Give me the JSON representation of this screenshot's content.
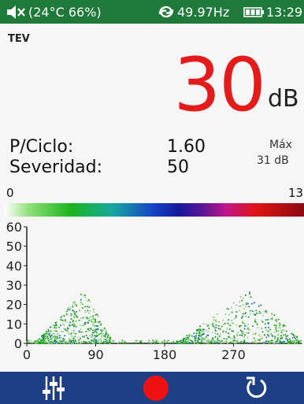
{
  "status_bar": {
    "env_text": "(24°C 66%)",
    "frequency": "49.97Hz",
    "time": "13:29",
    "icons": [
      "speaker-muted-icon",
      "sync-icon",
      "battery-icon"
    ]
  },
  "mode": "TEV",
  "reading": {
    "value": "30",
    "unit": "dB"
  },
  "stats": {
    "pulses_label": "P/Ciclo:",
    "pulses_value": "1.60",
    "severity_label": "Severidad:",
    "severity_value": "50",
    "max_label": "Máx",
    "max_value": "31 dB"
  },
  "color_scale": {
    "min": "0",
    "max": "13"
  },
  "chart_data": {
    "type": "scatter",
    "title": "",
    "xlabel": "",
    "ylabel": "",
    "xlim": [
      0,
      360
    ],
    "ylim": [
      0,
      60
    ],
    "x_ticks": [
      "0",
      "90",
      "180",
      "270"
    ],
    "y_ticks": [
      "0",
      "10",
      "20",
      "30",
      "40",
      "50",
      "60"
    ],
    "grid": false,
    "clusters": [
      {
        "x_range": [
          10,
          110
        ],
        "y_range": [
          0,
          28
        ],
        "peak_x": 75,
        "peak_y": 27
      },
      {
        "x_range": [
          195,
          355
        ],
        "y_range": [
          0,
          28
        ],
        "peak_x": 290,
        "peak_y": 27
      }
    ],
    "colors": {
      "low": "#8fd07f",
      "mid": "#1aa01a",
      "high": "#1a6fb0"
    }
  },
  "toolbar": {
    "buttons": [
      {
        "name": "settings-sliders-button",
        "icon": "sliders-icon"
      },
      {
        "name": "record-button",
        "icon": "record-icon",
        "color": "#ee1111"
      },
      {
        "name": "reset-button",
        "icon": "refresh-icon"
      }
    ]
  }
}
